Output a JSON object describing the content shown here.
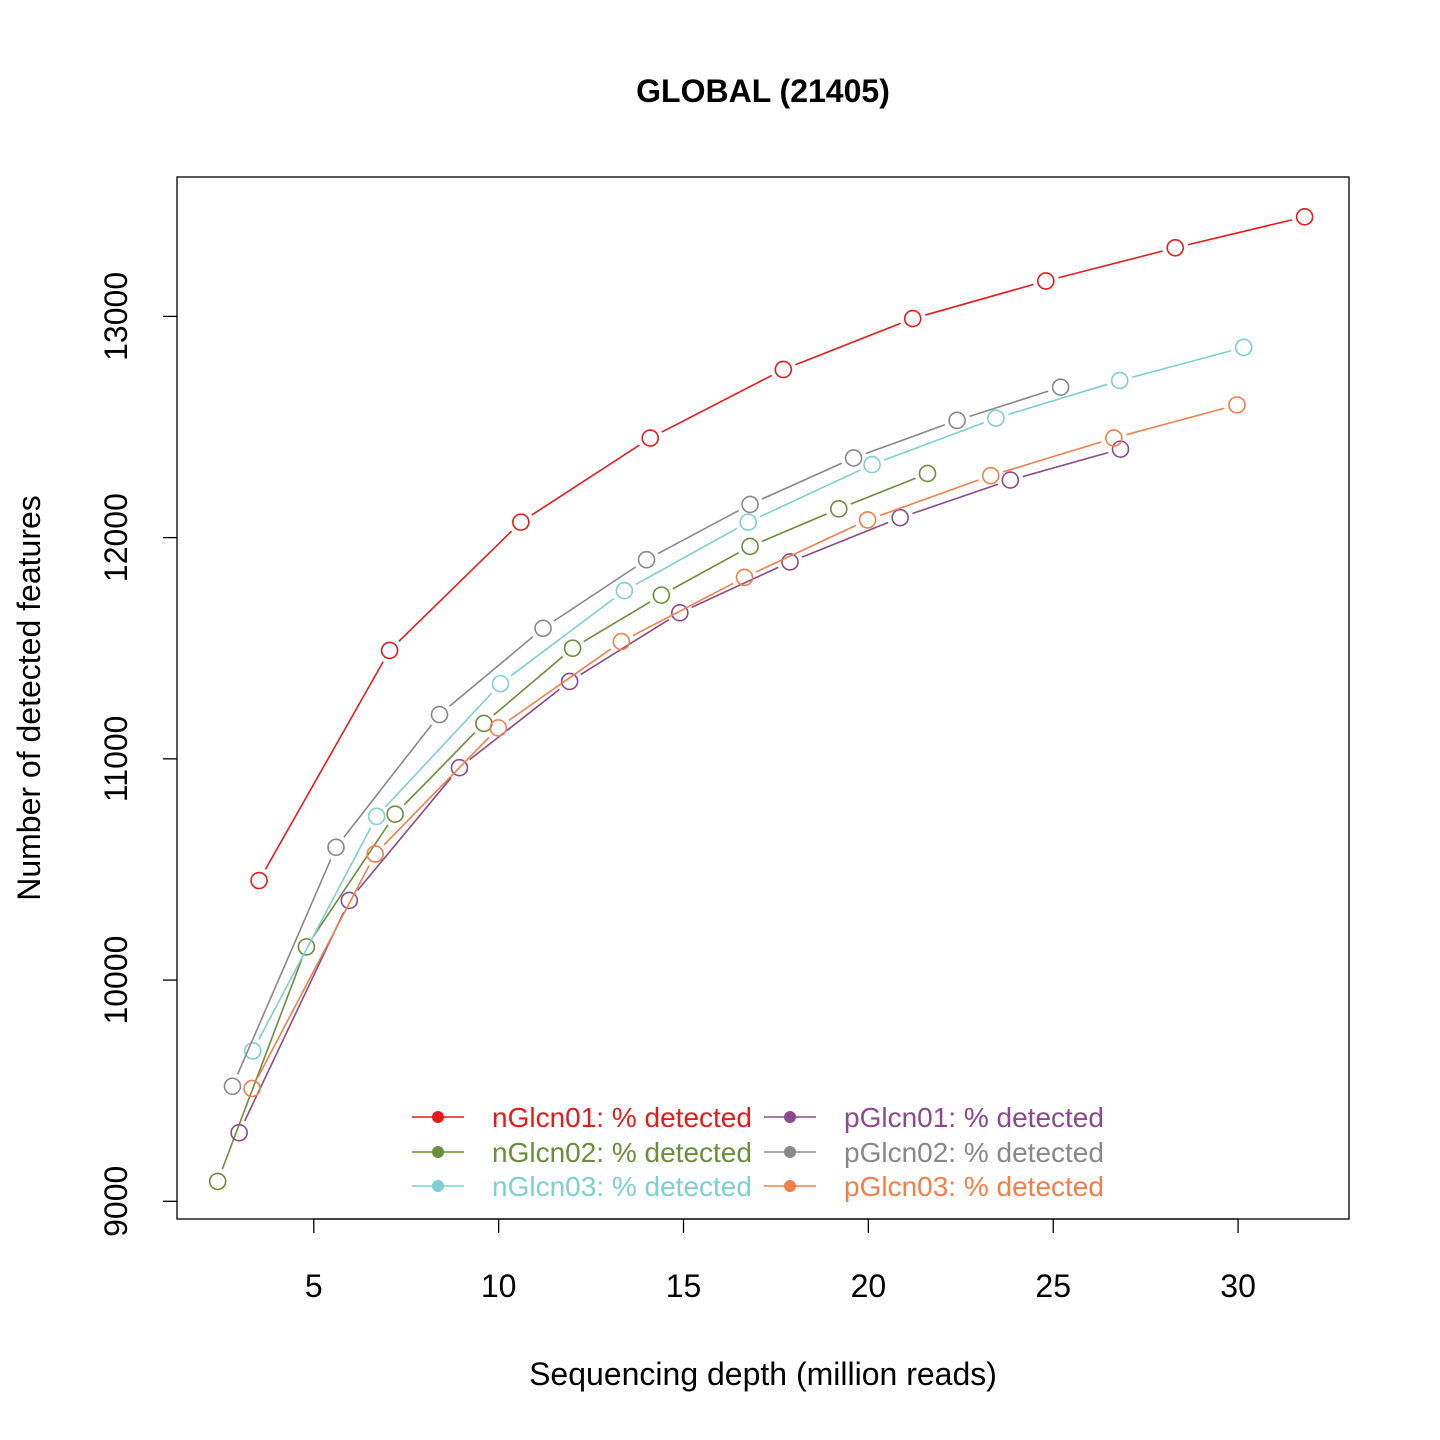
{
  "chart_data": {
    "type": "line",
    "title": "GLOBAL (21405)",
    "xlabel": "Sequencing depth (million reads)",
    "ylabel": "Number of detected features",
    "xlim": [
      1.3,
      33.0
    ],
    "ylim": [
      8920,
      13630
    ],
    "x_ticks": [
      5,
      10,
      15,
      20,
      25,
      30
    ],
    "y_ticks": [
      9000,
      10000,
      11000,
      12000,
      13000
    ],
    "legend_position": "bottom-center",
    "grid": false,
    "series": [
      {
        "name": "nGlcn01: % detected",
        "color": "#e41a1c",
        "x": [
          3.52,
          7.05,
          10.6,
          14.1,
          17.7,
          21.2,
          24.8,
          28.3,
          31.8
        ],
        "y": [
          10450,
          11490,
          12070,
          12450,
          12760,
          12990,
          13160,
          13310,
          13450
        ]
      },
      {
        "name": "nGlcn02: % detected",
        "color": "#6b8e3a",
        "x": [
          2.4,
          4.8,
          7.2,
          9.6,
          12.0,
          14.4,
          16.8,
          19.2,
          21.6
        ],
        "y": [
          9090,
          10150,
          10750,
          11160,
          11500,
          11740,
          11960,
          12130,
          12290
        ]
      },
      {
        "name": "nGlcn03: % detected",
        "color": "#7ecfd1",
        "x": [
          3.35,
          6.7,
          10.05,
          13.4,
          16.75,
          20.1,
          23.45,
          26.8,
          30.15
        ],
        "y": [
          9680,
          10740,
          11340,
          11760,
          12070,
          12330,
          12540,
          12710,
          12860
        ]
      },
      {
        "name": "pGlcn01: % detected",
        "color": "#8b4a8d",
        "x": [
          2.98,
          5.96,
          8.94,
          11.92,
          14.9,
          17.88,
          20.86,
          23.84,
          26.82
        ],
        "y": [
          9310,
          10360,
          10960,
          11350,
          11660,
          11890,
          12090,
          12260,
          12400
        ]
      },
      {
        "name": "pGlcn02: % detected",
        "color": "#888888",
        "x": [
          2.8,
          5.6,
          8.4,
          11.2,
          14.0,
          16.8,
          19.6,
          22.4,
          25.2
        ],
        "y": [
          9520,
          10600,
          11200,
          11590,
          11900,
          12150,
          12360,
          12530,
          12680
        ]
      },
      {
        "name": "pGlcn03: % detected",
        "color": "#f07f4a",
        "x": [
          3.33,
          6.66,
          9.99,
          13.32,
          16.65,
          19.98,
          23.31,
          26.64,
          29.97
        ],
        "y": [
          9510,
          10570,
          11140,
          11530,
          11820,
          12080,
          12280,
          12450,
          12600
        ]
      }
    ]
  }
}
